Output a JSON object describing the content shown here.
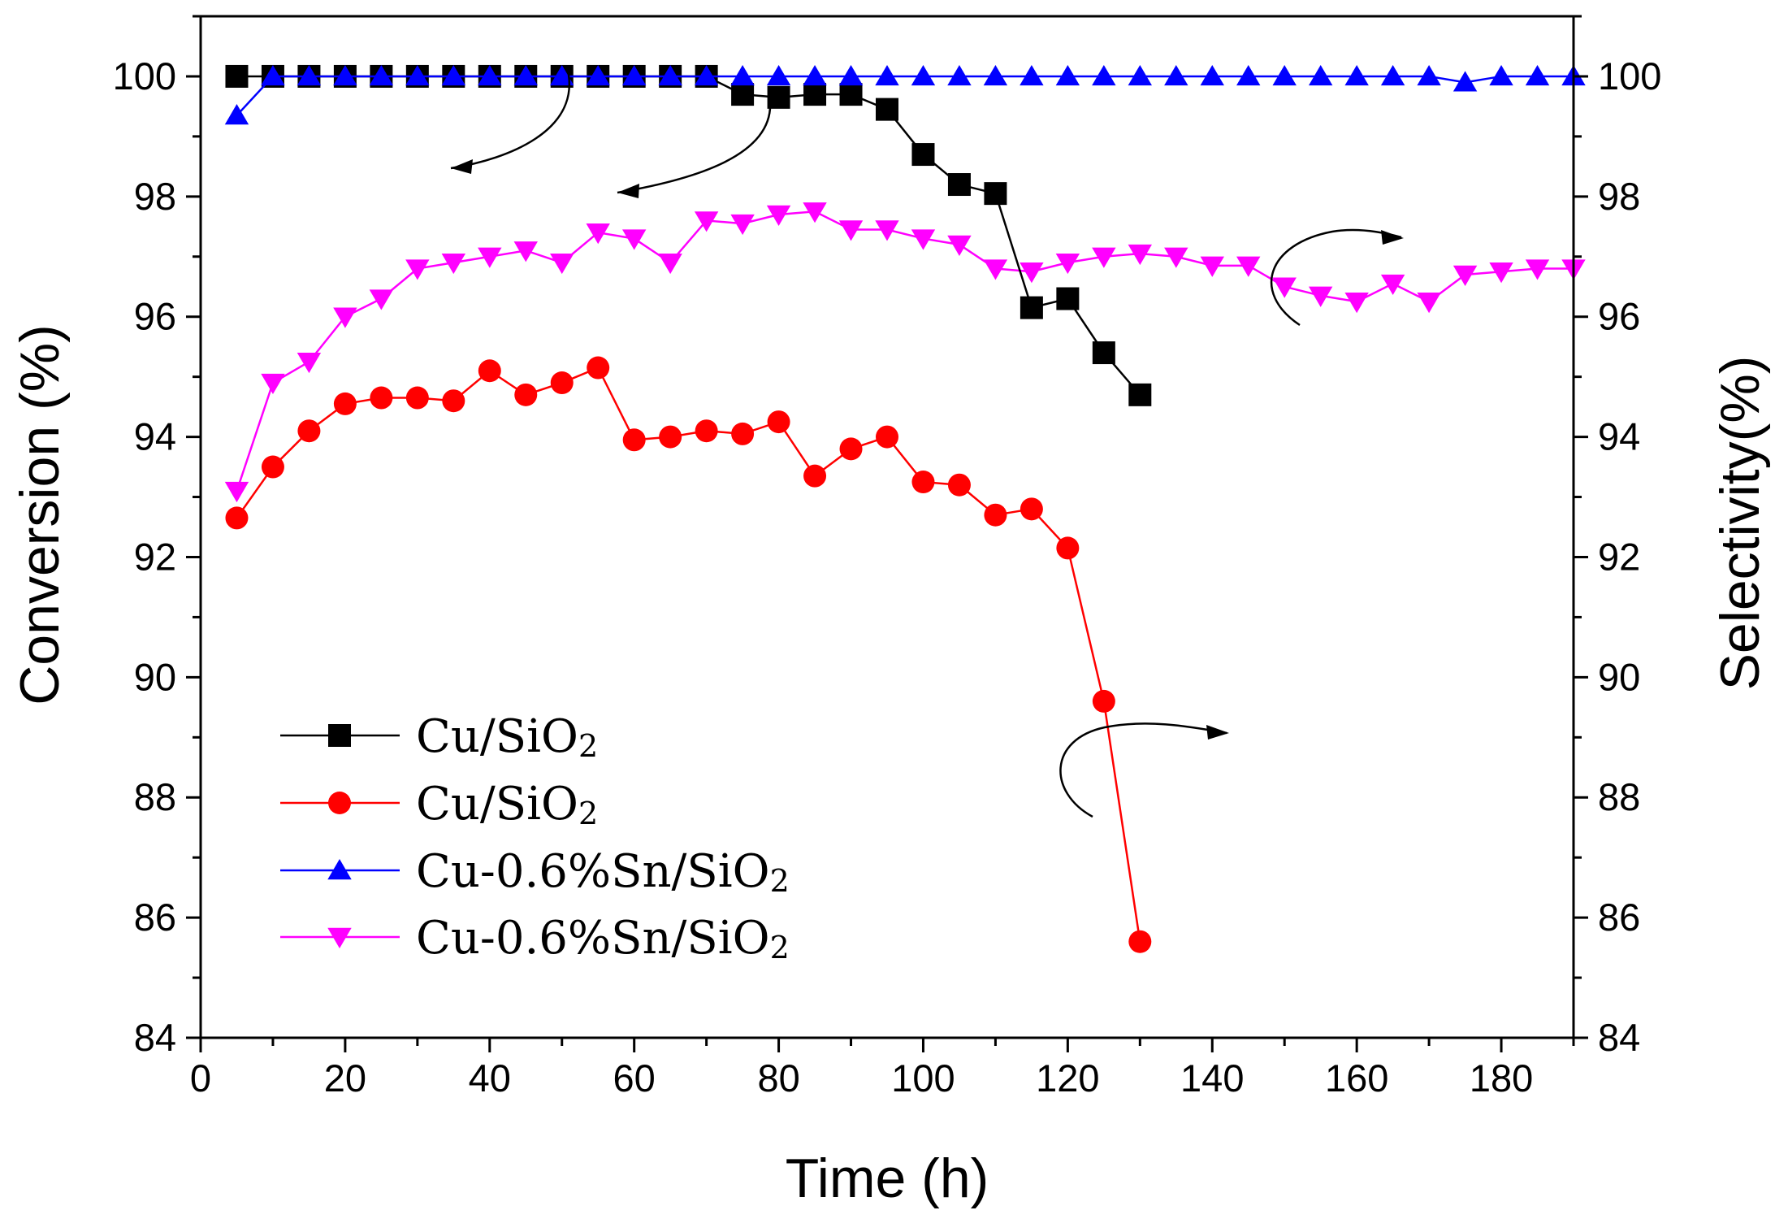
{
  "chart_data": {
    "type": "line",
    "title": "",
    "xlabel": "Time (h)",
    "ylabel": "Conversion (%)",
    "ylabel_right": "Selectivity(%)",
    "xlim": [
      0,
      190
    ],
    "ylim": [
      84,
      101
    ],
    "ylim_right": [
      84,
      101
    ],
    "x_ticks": [
      "0",
      "20",
      "40",
      "60",
      "80",
      "100",
      "120",
      "140",
      "160",
      "180"
    ],
    "y_ticks": [
      "84",
      "86",
      "88",
      "90",
      "92",
      "94",
      "96",
      "98",
      "100"
    ],
    "y_ticks_right": [
      "84",
      "86",
      "88",
      "90",
      "92",
      "94",
      "96",
      "98",
      "100"
    ],
    "grid": false,
    "legend_position": "lower-left",
    "series": [
      {
        "name": "Cu/SiO2",
        "label_main": "Cu/SiO",
        "label_sub": "2",
        "color": "#000000",
        "marker": "square",
        "axis": "left",
        "x": [
          5,
          10,
          15,
          20,
          25,
          30,
          35,
          40,
          45,
          50,
          55,
          60,
          65,
          70,
          75,
          80,
          85,
          90,
          95,
          100,
          105,
          110,
          115,
          120,
          125,
          130
        ],
        "values": [
          100,
          100,
          100,
          100,
          100,
          100,
          100,
          100,
          100,
          100,
          100,
          100,
          100,
          100,
          99.7,
          99.65,
          99.7,
          99.7,
          99.45,
          98.7,
          98.2,
          98.05,
          96.15,
          96.3,
          95.4,
          94.7
        ]
      },
      {
        "name": "Cu/SiO2",
        "label_main": "Cu/SiO",
        "label_sub": "2",
        "color": "#ff0000",
        "marker": "circle",
        "axis": "right",
        "x": [
          5,
          10,
          15,
          20,
          25,
          30,
          35,
          40,
          45,
          50,
          55,
          60,
          65,
          70,
          75,
          80,
          85,
          90,
          95,
          100,
          105,
          110,
          115,
          120,
          125,
          130
        ],
        "values": [
          92.65,
          93.5,
          94.1,
          94.55,
          94.65,
          94.65,
          94.6,
          95.1,
          94.7,
          94.9,
          95.15,
          93.95,
          94.0,
          94.1,
          94.05,
          94.25,
          93.35,
          93.8,
          94.0,
          93.25,
          93.2,
          92.7,
          92.8,
          92.15,
          89.6,
          85.6
        ]
      },
      {
        "name": "Cu-0.6%Sn/SiO2",
        "label_main": "Cu-0.6%Sn/SiO",
        "label_sub": "2",
        "color": "#0000ff",
        "marker": "triangle-up",
        "axis": "left",
        "x": [
          5,
          10,
          15,
          20,
          25,
          30,
          35,
          40,
          45,
          50,
          55,
          60,
          65,
          70,
          75,
          80,
          85,
          90,
          95,
          100,
          105,
          110,
          115,
          120,
          125,
          130,
          135,
          140,
          145,
          150,
          155,
          160,
          165,
          170,
          175,
          180,
          185,
          190
        ],
        "values": [
          99.35,
          100,
          100,
          100,
          100,
          100,
          100,
          100,
          100,
          100,
          100,
          100,
          100,
          100,
          100,
          100,
          100,
          100,
          100,
          100,
          100,
          100,
          100,
          100,
          100,
          100,
          100,
          100,
          100,
          100,
          100,
          100,
          100,
          100,
          99.9,
          100,
          100,
          100
        ]
      },
      {
        "name": "Cu-0.6%Sn/SiO2",
        "label_main": "Cu-0.6%Sn/SiO",
        "label_sub": "2",
        "color": "#ff00ff",
        "marker": "triangle-down",
        "axis": "right",
        "x": [
          5,
          10,
          15,
          20,
          25,
          30,
          35,
          40,
          45,
          50,
          55,
          60,
          65,
          70,
          75,
          80,
          85,
          90,
          95,
          100,
          105,
          110,
          115,
          120,
          125,
          130,
          135,
          140,
          145,
          150,
          155,
          160,
          165,
          170,
          175,
          180,
          185,
          190
        ],
        "values": [
          93.1,
          94.9,
          95.25,
          96.0,
          96.3,
          96.8,
          96.9,
          97.0,
          97.1,
          96.9,
          97.4,
          97.3,
          96.9,
          97.6,
          97.55,
          97.7,
          97.75,
          97.45,
          97.45,
          97.3,
          97.2,
          96.8,
          96.75,
          96.9,
          97.0,
          97.05,
          97.0,
          96.85,
          96.85,
          96.5,
          96.35,
          96.25,
          96.55,
          96.25,
          96.7,
          96.75,
          96.8,
          96.8
        ]
      }
    ]
  }
}
